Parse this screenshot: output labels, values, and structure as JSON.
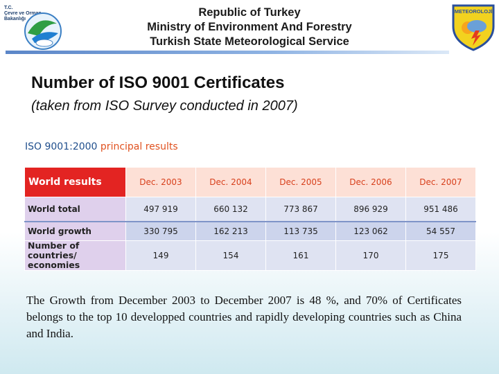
{
  "header": {
    "org_lines": [
      "T.C.",
      "Çevre ve Orman",
      "Bakanlığı"
    ],
    "titles": [
      "Republic of Turkey",
      "Ministry of Environment And Forestry",
      "Turkish State Meteorological Service"
    ],
    "right_logo_text": "METEOROLOJİ"
  },
  "slide": {
    "title": "Number of ISO 9001 Certificates",
    "subtitle": "(taken from ISO Survey conducted in 2007)"
  },
  "table": {
    "caption_part1": "ISO 9001:2000",
    "caption_part2": "principal results",
    "header_label": "World results",
    "columns": [
      "Dec. 2003",
      "Dec. 2004",
      "Dec. 2005",
      "Dec. 2006",
      "Dec. 2007"
    ],
    "rows": [
      {
        "label": "World total",
        "values": [
          "497 919",
          "660 132",
          "773 867",
          "896 929",
          "951 486"
        ]
      },
      {
        "label": "World growth",
        "values": [
          "330 795",
          "162 213",
          "113 735",
          "123 062",
          "54 557"
        ]
      },
      {
        "label": "Number of countries/ economies",
        "values": [
          "149",
          "154",
          "161",
          "170",
          "175"
        ]
      }
    ]
  },
  "body_text": "The Growth from December 2003 to December 2007 is 48 %, and 70% of Certificates belongs to the top 10 developped countries and rapidly developing countries such as China and India.",
  "colors": {
    "table_header_red": "#e32422",
    "caption_blue": "#1f4e8c",
    "caption_orange": "#e0511f"
  }
}
